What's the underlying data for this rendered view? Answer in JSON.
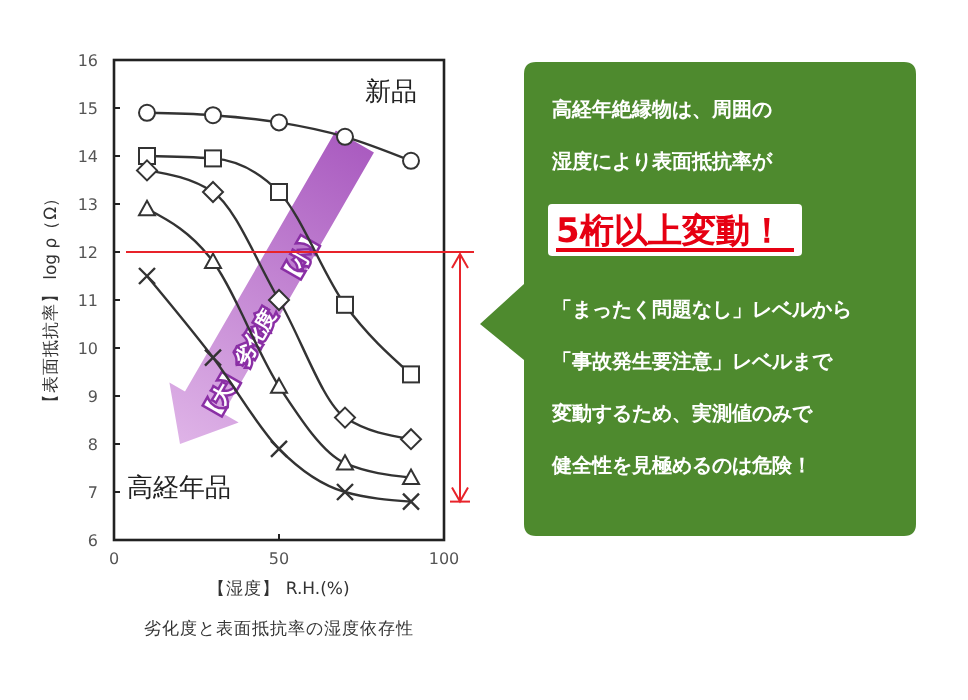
{
  "chart_data": {
    "type": "line",
    "xlabel": "【湿度】 R.H.(%)",
    "ylabel": "【表面抵抗率】 log ρ（Ω）",
    "x": [
      10,
      30,
      50,
      70,
      90
    ],
    "series": [
      {
        "color": "#333333",
        "marker": "circle",
        "values": [
          14.9,
          14.85,
          14.7,
          14.4,
          13.9
        ]
      },
      {
        "color": "#333333",
        "marker": "square",
        "values": [
          14.0,
          13.95,
          13.25,
          10.9,
          9.45
        ]
      },
      {
        "color": "#333333",
        "marker": "diamond",
        "values": [
          13.7,
          13.25,
          11.0,
          8.55,
          8.1
        ]
      },
      {
        "color": "#333333",
        "marker": "triangle",
        "values": [
          12.9,
          11.8,
          9.2,
          7.6,
          7.3
        ]
      },
      {
        "color": "#333333",
        "marker": "cross",
        "values": [
          11.5,
          9.8,
          7.9,
          7.0,
          6.8
        ]
      }
    ],
    "xlim": [
      0,
      100
    ],
    "xticks": [
      0,
      50,
      100
    ],
    "ylim": [
      6,
      16
    ],
    "yticks": [
      6,
      7,
      8,
      9,
      10,
      11,
      12,
      13,
      14,
      15,
      16
    ],
    "grid": false,
    "line_style": "solid",
    "ref_lines": [
      {
        "axis": "y",
        "value": 12,
        "color": "#e8232a"
      }
    ],
    "annotations": [
      "新品",
      "高経年品",
      "【大】",
      "劣化度",
      "【小】",
      "劣化度と表面抵抗率の湿度依存性",
      "高経年絶縁物は、周囲の",
      "湿度により表面抵抗率が",
      "5桁以上変動！",
      "「まったく問題なし」レベルから",
      "「事故発生要注意」レベルまで",
      "変動するため、実測値のみで",
      "健全性を見極めるのは危険！"
    ]
  }
}
